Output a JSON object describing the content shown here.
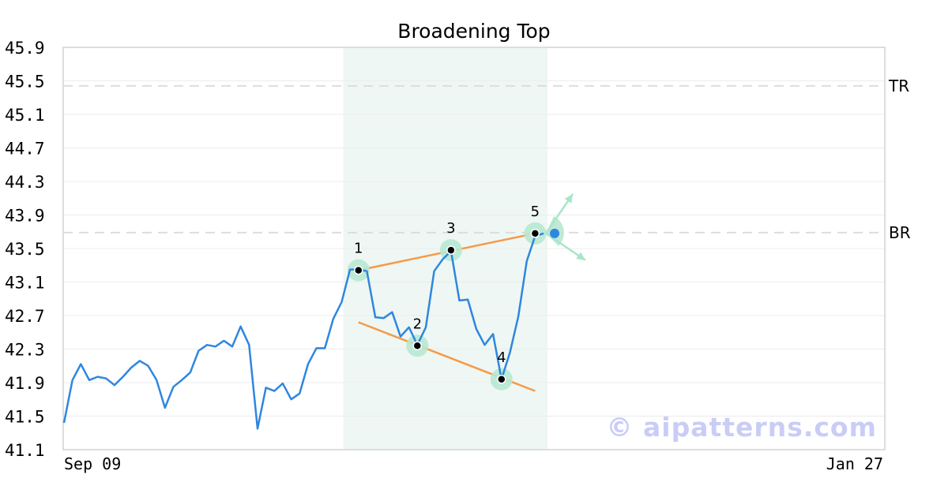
{
  "chart_data": {
    "type": "line",
    "title": "Broadening Top",
    "ylim": [
      41.1,
      45.9
    ],
    "yticks": [
      "41.1",
      "41.5",
      "41.9",
      "42.3",
      "42.7",
      "43.1",
      "43.5",
      "43.9",
      "44.3",
      "44.7",
      "45.1",
      "45.5",
      "45.9"
    ],
    "xticks": [
      "Sep 09",
      "Jan 27"
    ],
    "grid": true,
    "series": [
      {
        "values": [
          41.42,
          41.93,
          42.12,
          41.93,
          41.97,
          41.95,
          41.87,
          41.97,
          42.08,
          42.16,
          42.1,
          41.93,
          41.6,
          41.85,
          41.93,
          42.02,
          42.28,
          42.35,
          42.33,
          42.4,
          42.33,
          42.57,
          42.35,
          41.35,
          41.84,
          41.8,
          41.89,
          41.7,
          41.77,
          42.12,
          42.31,
          42.31,
          42.66,
          42.86,
          43.25,
          43.25,
          43.23,
          42.68,
          42.67,
          42.74,
          42.45,
          42.56,
          42.35,
          42.56,
          43.23,
          43.37,
          43.47,
          42.88,
          42.89,
          42.54,
          42.35,
          42.48,
          41.94,
          42.26,
          42.69,
          43.35,
          43.65,
          43.68
        ]
      }
    ],
    "highlight_range": [
      33,
      57
    ],
    "levels": [
      {
        "label": "TR",
        "value": 45.44
      },
      {
        "label": "BR",
        "value": 43.69
      }
    ],
    "pivots": [
      {
        "label": "1",
        "index": 35,
        "value": 43.24
      },
      {
        "label": "2",
        "index": 42,
        "value": 42.34
      },
      {
        "label": "3",
        "index": 46,
        "value": 43.48
      },
      {
        "label": "4",
        "index": 52,
        "value": 41.94
      },
      {
        "label": "5",
        "index": 56,
        "value": 43.68
      }
    ],
    "trendlines": [
      {
        "from": {
          "index": 35,
          "value": 43.24
        },
        "to": {
          "index": 56,
          "value": 43.68
        }
      },
      {
        "from": {
          "index": 35,
          "value": 42.62
        },
        "to": {
          "index": 56,
          "value": 41.8
        }
      }
    ],
    "colors": {
      "line": "#2f86e0",
      "trendline": "#f59a4a",
      "highlight": "#eef7f3",
      "pivot_halo": "#b7e8d2",
      "arrow": "#a8e6c8",
      "level": "#dddddd"
    }
  },
  "watermark": "© aipatterns.com"
}
